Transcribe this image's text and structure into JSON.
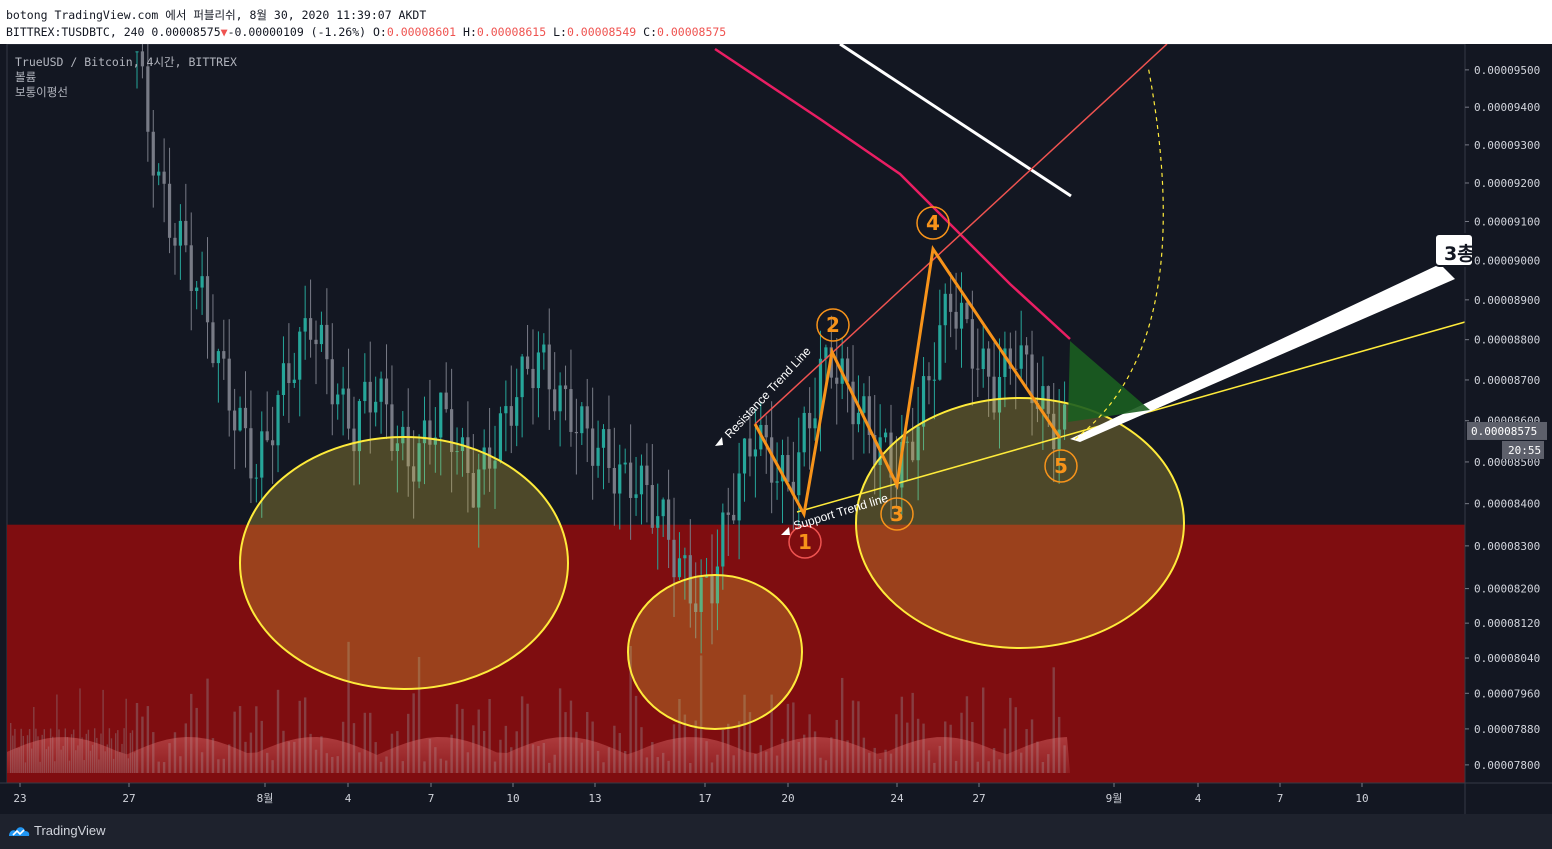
{
  "header": {
    "published": "botong TradingView.com 에서 퍼블리쉬, 8월 30, 2020 11:39:07 AKDT",
    "symbol_line_prefix": "BITTREX:TUSDBTC, 240 0.00008575",
    "change": "-0.00000109 (-1.26%)",
    "o_label": "O:",
    "o_value": "0.00008601",
    "h_label": "H:",
    "h_value": "0.00008615",
    "l_label": "L:",
    "l_value": "0.00008549",
    "c_label": "C:",
    "c_value": "0.00008575",
    "down_arrow": "▼"
  },
  "legend": {
    "title": "TrueUSD / Bitcoin, 4시간, BITTREX",
    "volume": "볼륨",
    "indicator": "보통이평선"
  },
  "annotation_box": {
    "text": "3총"
  },
  "footer": {
    "brand": "TradingView"
  },
  "colors": {
    "background": "#131722",
    "up_candle": "#26a69a",
    "down_candle": "#787b86",
    "red_zone": "#7f0d10",
    "wave_lines": "#f7931a",
    "ellipse": "#ffeb3b",
    "resistance_line": "#ef5350",
    "ma_line": "#e91e63",
    "support_line": "#ffeb3b"
  },
  "chart_data": {
    "type": "candlestick",
    "symbol": "TUSDBTC",
    "exchange": "BITTREX",
    "interval": "4시간",
    "last_price": "0.00008575",
    "countdown": "20:55",
    "y_tick_labels": [
      "0.00009500",
      "0.00009400",
      "0.00009300",
      "0.00009200",
      "0.00009100",
      "0.00009000",
      "0.00008900",
      "0.00008800",
      "0.00008700",
      "0.00008600",
      "0.00008500",
      "0.00008400",
      "0.00008300",
      "0.00008200",
      "0.00008120",
      "0.00008040",
      "0.00007960",
      "0.00007880",
      "0.00007800"
    ],
    "y_scale": "log",
    "ylim": [
      7.76e-05,
      9.57e-05
    ],
    "x_tick_labels": [
      "23",
      "27",
      "8월",
      "4",
      "7",
      "10",
      "13",
      "17",
      "20",
      "24",
      "27",
      "9월",
      "4",
      "7",
      "10"
    ],
    "wave_points": [
      {
        "label": "1",
        "price": 8.41e-05
      },
      {
        "label": "2",
        "price": 8.77e-05
      },
      {
        "label": "3",
        "price": 8.45e-05
      },
      {
        "label": "4",
        "price": 9.04e-05
      },
      {
        "label": "5",
        "price": 8.58e-05
      }
    ],
    "drawing_labels": {
      "resistance": "Resistance Trend Line",
      "support": "Support Trend line"
    },
    "red_zone_top_price": 8.35e-05,
    "close_series": [
      9.55e-05,
      9.35e-05,
      9.2e-05,
      9.1e-05,
      9.05e-05,
      8.98e-05,
      8.9e-05,
      8.8e-05,
      8.7e-05,
      8.62e-05,
      8.55e-05,
      8.48e-05,
      8.55e-05,
      8.65e-05,
      8.72e-05,
      8.78e-05,
      8.85e-05,
      8.78e-05,
      8.7e-05,
      8.62e-05,
      8.58e-05,
      8.65e-05,
      8.68e-05,
      8.62e-05,
      8.55e-05,
      8.5e-05,
      8.52e-05,
      8.58e-05,
      8.62e-05,
      8.58e-05,
      8.5e-05,
      8.45e-05,
      8.48e-05,
      8.55e-05,
      8.6e-05,
      8.68e-05,
      8.72e-05,
      8.76e-05,
      8.7e-05,
      8.65e-05,
      8.62e-05,
      8.58e-05,
      8.55e-05,
      8.52e-05,
      8.48e-05,
      8.45e-05,
      8.46e-05,
      8.42e-05,
      8.38e-05,
      8.32e-05,
      8.25e-05,
      8.2e-05,
      8.18e-05,
      8.22e-05,
      8.32e-05,
      8.42e-05,
      8.5e-05,
      8.58e-05,
      8.52e-05,
      8.48e-05,
      8.44e-05,
      8.52e-05,
      8.6e-05,
      8.72e-05,
      8.75e-05,
      8.7e-05,
      8.65e-05,
      8.6e-05,
      8.55e-05,
      8.52e-05,
      8.48e-05,
      8.52e-05,
      8.6e-05,
      8.7e-05,
      8.82e-05,
      8.9e-05,
      8.85e-05,
      8.78e-05,
      8.72e-05,
      8.68e-05,
      8.72e-05,
      8.78e-05,
      8.72e-05,
      8.66e-05,
      8.6e-05,
      8.58e-05
    ]
  }
}
